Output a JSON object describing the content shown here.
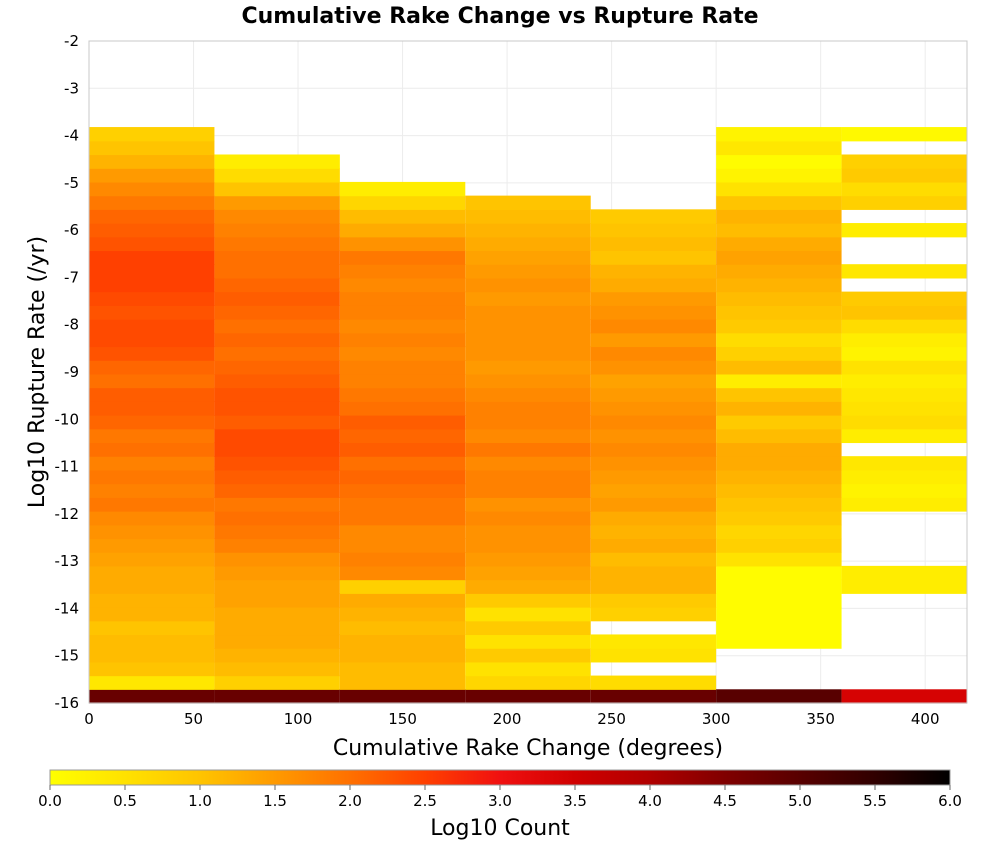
{
  "chart_data": {
    "type": "heatmap",
    "title": "Cumulative Rake Change vs Rupture Rate",
    "xlabel": "Cumulative Rake Change (degrees)",
    "ylabel": "Log10 Rupture Rate (/yr)",
    "xlim": [
      0,
      420
    ],
    "ylim": [
      -16,
      -2
    ],
    "x_ticks": [
      0,
      50,
      100,
      150,
      200,
      250,
      300,
      350,
      400
    ],
    "y_ticks": [
      -2,
      -3,
      -4,
      -5,
      -6,
      -7,
      -8,
      -9,
      -10,
      -11,
      -12,
      -13,
      -14,
      -15,
      -16
    ],
    "grid": true,
    "x_bin_width": 60,
    "y_bin_height": 0.29,
    "colorbar": {
      "label": "Log10 Count",
      "min": 0.0,
      "max": 6.0,
      "ticks": [
        "0.0",
        "0.5",
        "1.0",
        "1.5",
        "2.0",
        "2.5",
        "3.0",
        "3.5",
        "4.0",
        "4.5",
        "5.0",
        "5.5",
        "6.0"
      ],
      "stops": [
        {
          "v": 0.0,
          "color": "#ffff00"
        },
        {
          "v": 1.0,
          "color": "#ffc400"
        },
        {
          "v": 1.5,
          "color": "#ff9a00"
        },
        {
          "v": 2.0,
          "color": "#ff7000"
        },
        {
          "v": 2.5,
          "color": "#ff4000"
        },
        {
          "v": 3.0,
          "color": "#f01010"
        },
        {
          "v": 3.5,
          "color": "#d00000"
        },
        {
          "v": 4.0,
          "color": "#b00000"
        },
        {
          "v": 4.5,
          "color": "#800000"
        },
        {
          "v": 5.0,
          "color": "#580000"
        },
        {
          "v": 5.5,
          "color": "#300000"
        },
        {
          "v": 6.0,
          "color": "#000000"
        }
      ]
    },
    "columns": [
      {
        "x_start": 0,
        "y_start": -16.0,
        "values": [
          4.8,
          0.4,
          1.0,
          1.1,
          1.1,
          1.0,
          1.2,
          1.2,
          1.3,
          1.3,
          1.4,
          1.5,
          1.6,
          1.7,
          1.9,
          1.8,
          1.9,
          1.8,
          2.0,
          1.9,
          2.1,
          2.2,
          2.2,
          2.0,
          2.1,
          2.3,
          2.4,
          2.4,
          2.3,
          2.4,
          2.5,
          2.5,
          2.5,
          2.3,
          2.2,
          2.1,
          1.9,
          1.7,
          1.5,
          1.2,
          1.0,
          0.8
        ]
      },
      {
        "x_start": 60,
        "y_start": -16.0,
        "values": [
          4.8,
          0.8,
          1.1,
          1.2,
          1.3,
          1.3,
          1.3,
          1.4,
          1.4,
          1.5,
          1.6,
          1.8,
          1.9,
          2.0,
          1.9,
          2.1,
          2.2,
          2.3,
          2.4,
          2.4,
          2.2,
          2.3,
          2.3,
          2.2,
          2.1,
          2.0,
          2.1,
          2.0,
          2.1,
          2.2,
          2.1,
          2.0,
          2.0,
          1.9,
          1.8,
          1.7,
          1.5,
          1.0,
          0.6,
          0.3
        ]
      },
      {
        "x_start": 120,
        "y_start": -16.0,
        "values": [
          4.8,
          1.1,
          1.1,
          1.2,
          1.2,
          1.1,
          1.2,
          1.3,
          0.8,
          1.7,
          1.8,
          1.7,
          1.7,
          1.9,
          1.9,
          2.0,
          2.1,
          2.0,
          2.2,
          2.1,
          2.2,
          2.0,
          1.9,
          1.8,
          1.8,
          1.7,
          1.8,
          1.7,
          1.8,
          1.8,
          1.7,
          1.8,
          1.9,
          1.6,
          1.3,
          1.1,
          0.7,
          0.3
        ]
      },
      {
        "x_start": 180,
        "y_start": -16.0,
        "values": [
          4.8,
          0.7,
          0.5,
          0.9,
          0.5,
          0.9,
          0.5,
          0.9,
          1.3,
          1.4,
          1.5,
          1.6,
          1.6,
          1.7,
          1.6,
          1.8,
          1.8,
          1.7,
          1.9,
          1.7,
          1.8,
          1.8,
          1.7,
          1.6,
          1.5,
          1.6,
          1.6,
          1.6,
          1.6,
          1.5,
          1.6,
          1.5,
          1.4,
          1.3,
          1.2,
          1.1,
          1.0
        ]
      },
      {
        "x_start": 240,
        "y_start": -16.0,
        "values": [
          4.8,
          0.6,
          null,
          0.5,
          0.4,
          null,
          0.8,
          0.9,
          1.2,
          1.2,
          1.1,
          1.3,
          1.2,
          1.3,
          1.5,
          1.4,
          1.5,
          1.6,
          1.7,
          1.6,
          1.7,
          1.6,
          1.5,
          1.4,
          1.6,
          1.7,
          1.5,
          1.7,
          1.6,
          1.5,
          1.3,
          1.2,
          1.0,
          1.1,
          1.0,
          0.9
        ]
      },
      {
        "x_start": 300,
        "y_start": -16.0,
        "values": [
          5.0,
          null,
          null,
          null,
          0.05,
          0.05,
          0.05,
          0.05,
          0.05,
          0.05,
          0.5,
          0.8,
          0.7,
          0.9,
          1.0,
          1.1,
          1.2,
          1.3,
          1.3,
          1.1,
          0.9,
          1.2,
          1.0,
          0.3,
          1.1,
          0.8,
          0.6,
          0.9,
          1.0,
          1.1,
          1.2,
          1.3,
          1.4,
          1.3,
          1.1,
          1.2,
          1.0,
          0.5,
          0.2,
          0.05,
          0.4,
          0.2
        ]
      },
      {
        "x_start": 360,
        "y_start": -16.0,
        "values": [
          3.4,
          null,
          null,
          null,
          null,
          null,
          null,
          null,
          0.3,
          0.3,
          null,
          null,
          null,
          null,
          0.3,
          0.2,
          0.3,
          0.4,
          null,
          0.3,
          0.6,
          0.5,
          0.4,
          0.3,
          0.5,
          0.2,
          0.3,
          0.6,
          1.0,
          0.9,
          null,
          0.4,
          null,
          null,
          0.3,
          null,
          0.8,
          0.6,
          0.9,
          0.8,
          null,
          0.1
        ]
      }
    ]
  }
}
